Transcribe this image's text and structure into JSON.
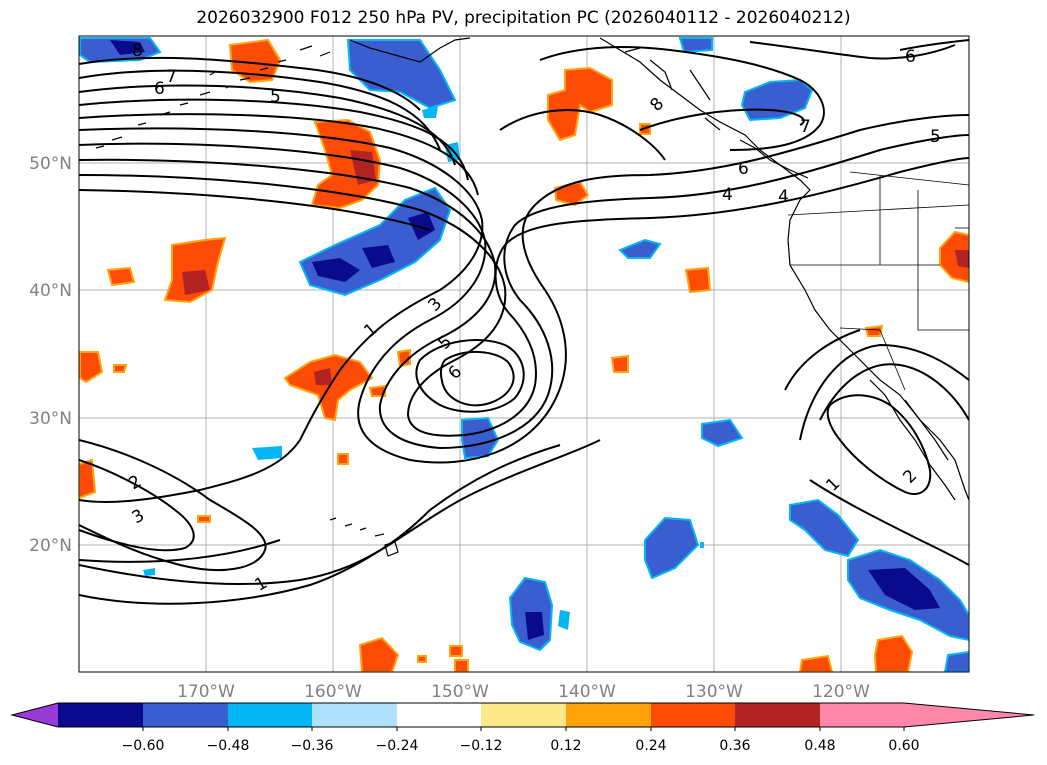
{
  "title": "2026032900 F012 250 hPa PV, precipitation PC (2026040112 - 2026040212)",
  "latitude_labels": [
    "50°N",
    "40°N",
    "30°N",
    "20°N"
  ],
  "longitude_labels": [
    "170°W",
    "160°W",
    "150°W",
    "140°W",
    "130°W",
    "120°W"
  ],
  "contour_labels": [
    "8",
    "7",
    "6",
    "5",
    "1",
    "3",
    "5",
    "6",
    "2",
    "3",
    "1",
    "6",
    "5",
    "7",
    "6",
    "4",
    "4",
    "1",
    "2",
    "8"
  ],
  "colorbar": {
    "ticks": [
      "−0.60",
      "−0.48",
      "−0.36",
      "−0.24",
      "−0.12",
      "0.12",
      "0.24",
      "0.36",
      "0.48",
      "0.60"
    ],
    "colors": [
      "#9a3ad6",
      "#0a0a8c",
      "#3a5ed0",
      "#04b6f4",
      "#aee2fb",
      "#ffffff",
      "#fde98a",
      "#fea30a",
      "#fb4b04",
      "#b22424",
      "#ff88aa"
    ]
  },
  "precip_colors": {
    "neg_strong": "#0a0a8c",
    "neg_mid": "#3a5ed0",
    "neg_light": "#04b6f4",
    "pos_light": "#fea30a",
    "pos_mid": "#fb4b04",
    "pos_strong": "#b22424"
  }
}
